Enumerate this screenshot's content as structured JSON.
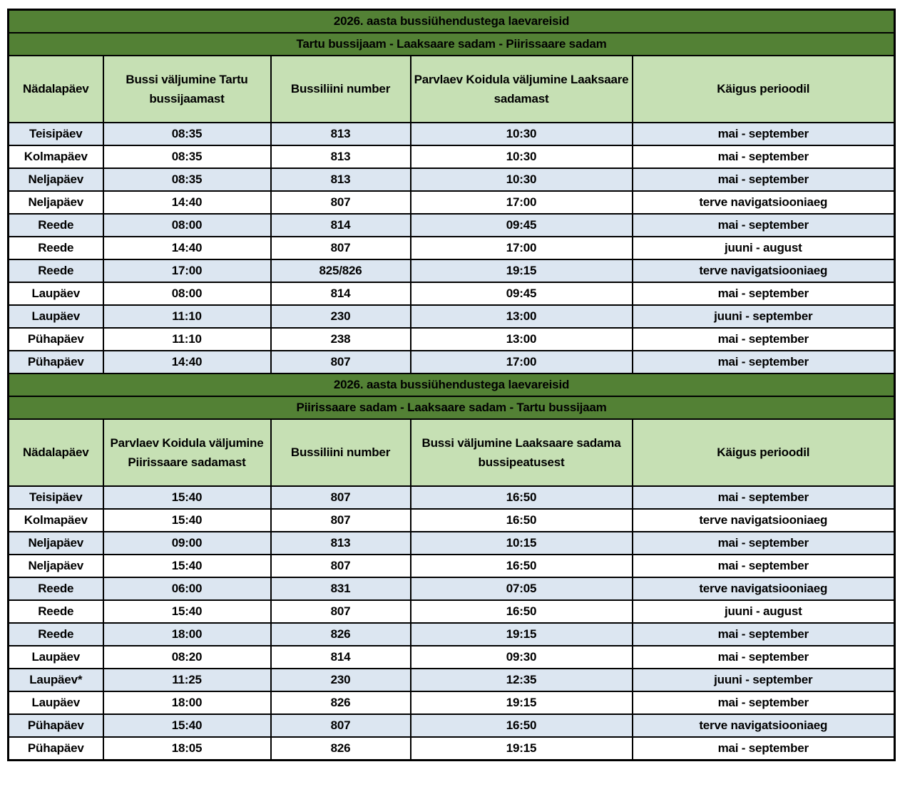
{
  "colors": {
    "band_background": "#538135",
    "band_text": "#ffffff",
    "header_background": "#c6e0b4",
    "row_stripe_blue": "#dce6f1",
    "row_stripe_white": "#ffffff",
    "grid_border": "#000000",
    "body_text": "#000000"
  },
  "column_keys": [
    "day",
    "departure-time",
    "bus-line",
    "arrival-time",
    "period"
  ],
  "tables": [
    {
      "title": "2026. aasta bussiühendustega laevareisid",
      "subtitle": "Tartu bussijaam - Laaksaare sadam - Piirissaare sadam",
      "columns": [
        "Nädalapäev",
        "Bussi väljumine Tartu bussijaamast",
        "Bussiliini number",
        "Parvlaev Koidula väljumine Laaksaare sadamast",
        "Käigus perioodil"
      ],
      "rows": [
        [
          "Teisipäev",
          "08:35",
          "813",
          "10:30",
          "mai - september"
        ],
        [
          "Kolmapäev",
          "08:35",
          "813",
          "10:30",
          "mai - september"
        ],
        [
          "Neljapäev",
          "08:35",
          "813",
          "10:30",
          "mai - september"
        ],
        [
          "Neljapäev",
          "14:40",
          "807",
          "17:00",
          "terve navigatsiooniaeg"
        ],
        [
          "Reede",
          "08:00",
          "814",
          "09:45",
          "mai - september"
        ],
        [
          "Reede",
          "14:40",
          "807",
          "17:00",
          "juuni - august"
        ],
        [
          "Reede",
          "17:00",
          "825/826",
          "19:15",
          "terve navigatsiooniaeg"
        ],
        [
          "Laupäev",
          "08:00",
          "814",
          "09:45",
          "mai - september"
        ],
        [
          "Laupäev",
          "11:10",
          "230",
          "13:00",
          "juuni - september"
        ],
        [
          "Pühapäev",
          "11:10",
          "238",
          "13:00",
          "mai - september"
        ],
        [
          "Pühapäev",
          "14:40",
          "807",
          "17:00",
          "mai - september"
        ]
      ]
    },
    {
      "title": "2026. aasta bussiühendustega laevareisid",
      "subtitle": "Piirissaare sadam - Laaksaare sadam - Tartu bussijaam",
      "columns": [
        "Nädalapäev",
        "Parvlaev Koidula väljumine Piirissaare sadamast",
        "Bussiliini number",
        "Bussi väljumine Laaksaare sadama bussipeatusest",
        "Käigus perioodil"
      ],
      "rows": [
        [
          "Teisipäev",
          "15:40",
          "807",
          "16:50",
          "mai - september"
        ],
        [
          "Kolmapäev",
          "15:40",
          "807",
          "16:50",
          "terve navigatsiooniaeg"
        ],
        [
          "Neljapäev",
          "09:00",
          "813",
          "10:15",
          "mai - september"
        ],
        [
          "Neljapäev",
          "15:40",
          "807",
          "16:50",
          "mai - september"
        ],
        [
          "Reede",
          "06:00",
          "831",
          "07:05",
          "terve navigatsiooniaeg"
        ],
        [
          "Reede",
          "15:40",
          "807",
          "16:50",
          "juuni - august"
        ],
        [
          "Reede",
          "18:00",
          "826",
          "19:15",
          "mai - september"
        ],
        [
          "Laupäev",
          "08:20",
          "814",
          "09:30",
          "mai - september"
        ],
        [
          "Laupäev*",
          "11:25",
          "230",
          "12:35",
          "juuni - september"
        ],
        [
          "Laupäev",
          "18:00",
          "826",
          "19:15",
          "mai - september"
        ],
        [
          "Pühapäev",
          "15:40",
          "807",
          "16:50",
          "terve navigatsiooniaeg"
        ],
        [
          "Pühapäev",
          "18:05",
          "826",
          "19:15",
          "mai - september"
        ]
      ]
    }
  ]
}
